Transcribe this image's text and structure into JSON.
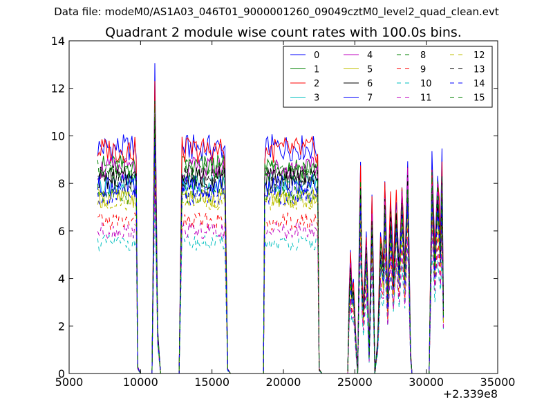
{
  "figure": {
    "suptitle": "Data file: modeM0/AS1A03_046T01_9000001260_09049cztM0_level2_quad_clean.evt"
  },
  "chart_data": {
    "type": "line",
    "title": "Quadrant 2 module wise count rates with 100.0s bins.",
    "xlabel": "",
    "ylabel": "",
    "x_offset_label": "+2.339e8",
    "xlim": [
      5000,
      35000
    ],
    "ylim": [
      0,
      14
    ],
    "x_ticks": [
      "5000",
      "10000",
      "15000",
      "20000",
      "25000",
      "30000",
      "35000"
    ],
    "y_ticks": [
      "0",
      "2",
      "4",
      "6",
      "8",
      "10",
      "12",
      "14"
    ],
    "grid": false,
    "legend_position": "top-right",
    "legend_columns": 4,
    "series_styles": {
      "0": {
        "color": "#0000ff",
        "dash": "solid"
      },
      "1": {
        "color": "#008000",
        "dash": "solid"
      },
      "2": {
        "color": "#ff0000",
        "dash": "solid"
      },
      "3": {
        "color": "#00bfbf",
        "dash": "solid"
      },
      "4": {
        "color": "#bf00bf",
        "dash": "solid"
      },
      "5": {
        "color": "#bfbf00",
        "dash": "solid"
      },
      "6": {
        "color": "#000000",
        "dash": "solid"
      },
      "7": {
        "color": "#0000ff",
        "dash": "solid"
      },
      "8": {
        "color": "#008000",
        "dash": "dashed"
      },
      "9": {
        "color": "#ff0000",
        "dash": "dashed"
      },
      "10": {
        "color": "#00bfbf",
        "dash": "dashed"
      },
      "11": {
        "color": "#bf00bf",
        "dash": "dashed"
      },
      "12": {
        "color": "#bfbf00",
        "dash": "dashed"
      },
      "13": {
        "color": "#000000",
        "dash": "dashed"
      },
      "14": {
        "color": "#0000ff",
        "dash": "dashed"
      },
      "15": {
        "color": "#008000",
        "dash": "dashed"
      }
    },
    "series": [
      {
        "name": "0",
        "level": 9.5
      },
      {
        "name": "1",
        "level": 8.7
      },
      {
        "name": "2",
        "level": 9.4
      },
      {
        "name": "3",
        "level": 8.0
      },
      {
        "name": "4",
        "level": 8.6
      },
      {
        "name": "5",
        "level": 7.4
      },
      {
        "name": "6",
        "level": 8.2
      },
      {
        "name": "7",
        "level": 7.9
      },
      {
        "name": "8",
        "level": 7.6
      },
      {
        "name": "9",
        "level": 6.4
      },
      {
        "name": "10",
        "level": 5.5
      },
      {
        "name": "11",
        "level": 6.0
      },
      {
        "name": "12",
        "level": 7.3
      },
      {
        "name": "13",
        "level": 8.3
      },
      {
        "name": "14",
        "level": 7.5
      },
      {
        "name": "15",
        "level": 8.5
      }
    ],
    "profile": [
      {
        "x": 7000,
        "m": 1.0
      },
      {
        "x": 9700,
        "m": 1.0
      },
      {
        "x": 9800,
        "m": 0.03
      },
      {
        "x": 10000,
        "m": 0.0
      },
      {
        "x": 10800,
        "m": 0.0
      },
      {
        "x": 11000,
        "m": 1.33
      },
      {
        "x": 11200,
        "m": 0.2
      },
      {
        "x": 11400,
        "m": 0.0
      },
      {
        "x": 12700,
        "m": 0.0
      },
      {
        "x": 12900,
        "m": 1.0
      },
      {
        "x": 15900,
        "m": 1.0
      },
      {
        "x": 16100,
        "m": 0.02
      },
      {
        "x": 16300,
        "m": 0.0
      },
      {
        "x": 18600,
        "m": 0.0
      },
      {
        "x": 18700,
        "m": 1.0
      },
      {
        "x": 22400,
        "m": 1.0
      },
      {
        "x": 22500,
        "m": 0.02
      },
      {
        "x": 22700,
        "m": 0.0
      },
      {
        "x": 24500,
        "m": 0.0
      },
      {
        "x": 24600,
        "m": 0.35
      },
      {
        "x": 24700,
        "m": 0.52
      },
      {
        "x": 24800,
        "m": 0.38
      },
      {
        "x": 24900,
        "m": 0.42
      },
      {
        "x": 25000,
        "m": 0.27
      },
      {
        "x": 25100,
        "m": 0.12
      },
      {
        "x": 25200,
        "m": 0.0
      },
      {
        "x": 25300,
        "m": 0.55
      },
      {
        "x": 25400,
        "m": 0.92
      },
      {
        "x": 25500,
        "m": 0.45
      },
      {
        "x": 25600,
        "m": 0.3
      },
      {
        "x": 25800,
        "m": 0.62
      },
      {
        "x": 25900,
        "m": 0.4
      },
      {
        "x": 26000,
        "m": 0.08
      },
      {
        "x": 26200,
        "m": 0.78
      },
      {
        "x": 26300,
        "m": 0.45
      },
      {
        "x": 26400,
        "m": 0.0
      },
      {
        "x": 26600,
        "m": 0.15
      },
      {
        "x": 26800,
        "m": 0.62
      },
      {
        "x": 27000,
        "m": 0.5
      },
      {
        "x": 27100,
        "m": 0.85
      },
      {
        "x": 27300,
        "m": 0.35
      },
      {
        "x": 27500,
        "m": 0.78
      },
      {
        "x": 27700,
        "m": 0.45
      },
      {
        "x": 27900,
        "m": 0.8
      },
      {
        "x": 28100,
        "m": 0.5
      },
      {
        "x": 28300,
        "m": 0.85
      },
      {
        "x": 28500,
        "m": 0.48
      },
      {
        "x": 28700,
        "m": 0.95
      },
      {
        "x": 28900,
        "m": 0.1
      },
      {
        "x": 29000,
        "m": 0.0
      },
      {
        "x": 30200,
        "m": 0.0
      },
      {
        "x": 30400,
        "m": 0.95
      },
      {
        "x": 30600,
        "m": 0.55
      },
      {
        "x": 30800,
        "m": 0.9
      },
      {
        "x": 31000,
        "m": 0.6
      },
      {
        "x": 31100,
        "m": 0.95
      },
      {
        "x": 31200,
        "m": 0.3
      }
    ],
    "noise_amplitude": 0.06
  }
}
